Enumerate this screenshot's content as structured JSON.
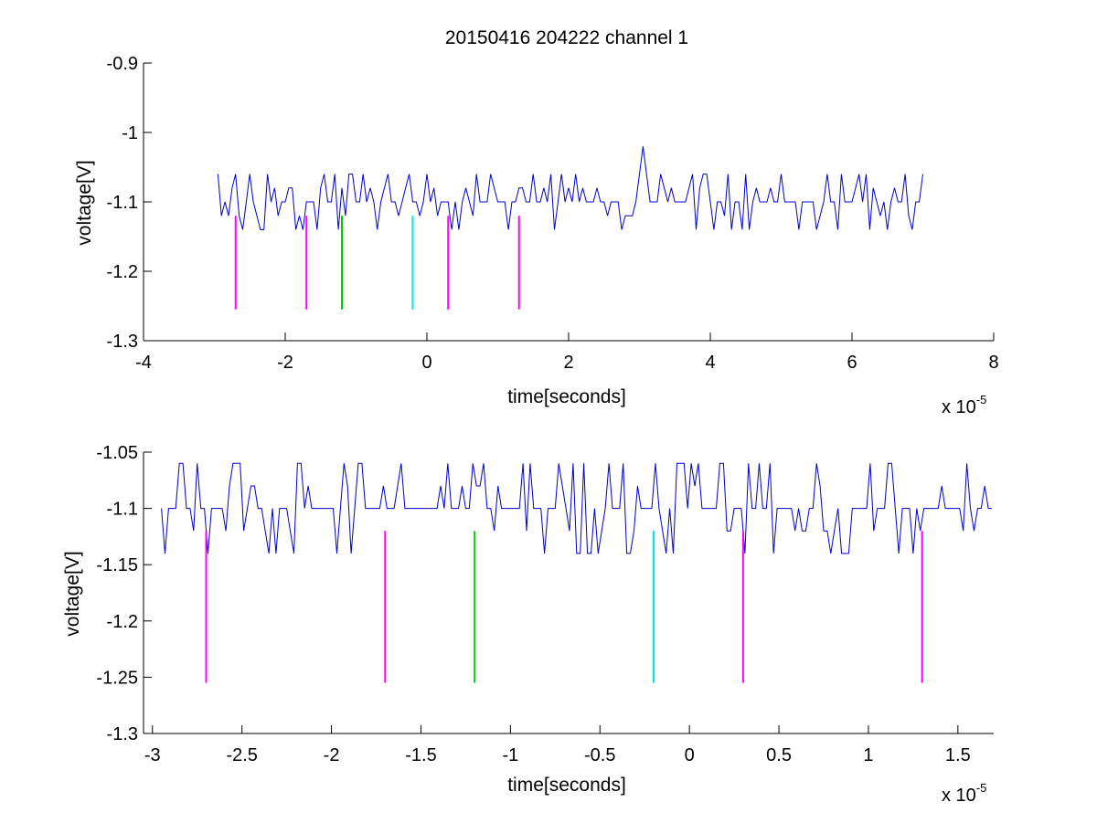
{
  "figure": {
    "title": "20150416 204222 channel 1"
  },
  "colors": {
    "signal": "#0000cc",
    "marker_magenta": "#ff00ff",
    "marker_green": "#00cc00",
    "marker_cyan": "#00e5e5"
  },
  "chart_data": [
    {
      "type": "line",
      "title": "20150416 204222 channel 1",
      "xlabel": "time[seconds]",
      "ylabel": "voltage[V]",
      "x_exponent_label": "x 10",
      "x_exponent_power": "-5",
      "xlim": [
        -4,
        8
      ],
      "ylim": [
        -1.3,
        -0.9
      ],
      "xticks": [
        "-4",
        "-2",
        "0",
        "2",
        "4",
        "6",
        "8"
      ],
      "yticks": [
        "-1.3",
        "-1.2",
        "-1.1",
        "-1",
        "-0.9"
      ],
      "grid": false,
      "series": [
        {
          "trace_range": [
            -2.95,
            7.0
          ],
          "baseline": -1.1,
          "levels": [
            -1.14,
            -1.12,
            -1.1,
            -1.08,
            -1.06
          ],
          "peak": {
            "x": 3.05,
            "y": -1.02
          }
        }
      ],
      "markers": [
        {
          "x": -2.7,
          "y_top": -1.12,
          "y_bottom": -1.255,
          "color": "magenta"
        },
        {
          "x": -1.7,
          "y_top": -1.12,
          "y_bottom": -1.255,
          "color": "magenta"
        },
        {
          "x": -1.2,
          "y_top": -1.12,
          "y_bottom": -1.255,
          "color": "green"
        },
        {
          "x": -0.2,
          "y_top": -1.12,
          "y_bottom": -1.255,
          "color": "cyan"
        },
        {
          "x": 0.3,
          "y_top": -1.12,
          "y_bottom": -1.255,
          "color": "magenta"
        },
        {
          "x": 1.3,
          "y_top": -1.12,
          "y_bottom": -1.255,
          "color": "magenta"
        }
      ]
    },
    {
      "type": "line",
      "xlabel": "time[seconds]",
      "ylabel": "voltage[V]",
      "x_exponent_label": "x 10",
      "x_exponent_power": "-5",
      "xlim": [
        -3.05,
        1.7
      ],
      "ylim": [
        -1.3,
        -1.05
      ],
      "xticks": [
        "-3",
        "-2.5",
        "-2",
        "-1.5",
        "-1",
        "-0.5",
        "0",
        "0.5",
        "1",
        "1.5"
      ],
      "yticks": [
        "-1.3",
        "-1.25",
        "-1.2",
        "-1.15",
        "-1.1",
        "-1.05"
      ],
      "grid": false,
      "series": [
        {
          "trace_range": [
            -2.95,
            1.7
          ],
          "baseline": -1.1,
          "levels": [
            -1.14,
            -1.12,
            -1.1,
            -1.08,
            -1.06
          ]
        }
      ],
      "markers": [
        {
          "x": -2.7,
          "y_top": -1.12,
          "y_bottom": -1.255,
          "color": "magenta"
        },
        {
          "x": -1.7,
          "y_top": -1.12,
          "y_bottom": -1.255,
          "color": "magenta"
        },
        {
          "x": -1.2,
          "y_top": -1.12,
          "y_bottom": -1.255,
          "color": "green"
        },
        {
          "x": -0.2,
          "y_top": -1.12,
          "y_bottom": -1.255,
          "color": "cyan"
        },
        {
          "x": 0.3,
          "y_top": -1.12,
          "y_bottom": -1.255,
          "color": "magenta"
        },
        {
          "x": 1.3,
          "y_top": -1.12,
          "y_bottom": -1.255,
          "color": "magenta"
        }
      ]
    }
  ]
}
